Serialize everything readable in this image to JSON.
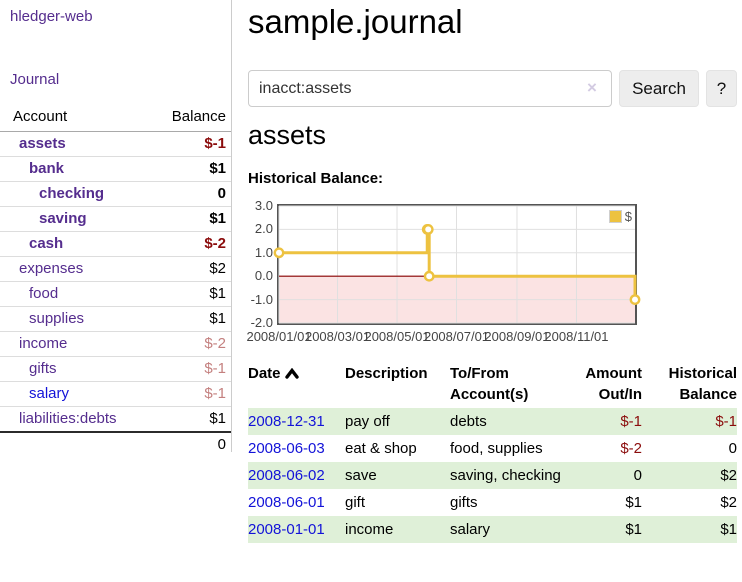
{
  "theme": {
    "purple": "#552d8e",
    "blue": "#1313d8",
    "neg_strong": "#8b0c0c",
    "neg_soft": "#c4807f",
    "stripe": "#dff0d8",
    "button_bg": "#ededed",
    "input_border": "#cccccc",
    "divider": "#cccccc",
    "plot_border": "#545454"
  },
  "sidebar": {
    "brand": "hledger-web",
    "journal_link": "Journal",
    "accounts_table": {
      "headers": {
        "account": "Account",
        "balance": "Balance"
      },
      "rows": [
        {
          "name": "assets",
          "balance": "$-1",
          "depth": 0,
          "strong": true,
          "negative": true
        },
        {
          "name": "bank",
          "balance": "$1",
          "depth": 1,
          "strong": true,
          "negative": false
        },
        {
          "name": "checking",
          "balance": "0",
          "depth": 2,
          "strong": true,
          "negative": false
        },
        {
          "name": "saving",
          "balance": "$1",
          "depth": 2,
          "strong": true,
          "negative": false
        },
        {
          "name": "cash",
          "balance": "$-2",
          "depth": 1,
          "strong": true,
          "negative": true
        },
        {
          "name": "expenses",
          "balance": "$2",
          "depth": 0,
          "strong": false,
          "negative": false
        },
        {
          "name": "food",
          "balance": "$1",
          "depth": 1,
          "strong": false,
          "negative": false
        },
        {
          "name": "supplies",
          "balance": "$1",
          "depth": 1,
          "strong": false,
          "negative": false
        },
        {
          "name": "income",
          "balance": "$-2",
          "depth": 0,
          "strong": false,
          "negative": true
        },
        {
          "name": "gifts",
          "balance": "$-1",
          "depth": 1,
          "strong": false,
          "negative": true
        },
        {
          "name": "salary",
          "balance": "$-1",
          "depth": 1,
          "strong": false,
          "negative": true,
          "unvisited": true
        },
        {
          "name": "liabilities:debts",
          "balance": "$1",
          "depth": 0,
          "strong": false,
          "negative": false
        }
      ],
      "total": "0"
    }
  },
  "header": {
    "title": "sample.journal"
  },
  "search": {
    "value": "inacct:assets",
    "clear_icon": "×",
    "search_button": "Search",
    "help_button": "?"
  },
  "account_page": {
    "heading": "assets",
    "section_label": "Historical Balance:"
  },
  "chart_data": {
    "type": "line",
    "step": true,
    "title": "Historical Balance",
    "x_range": [
      "2008-01-01",
      "2008-12-31"
    ],
    "ylim": [
      -2,
      3
    ],
    "y_ticks": [
      {
        "value": 3,
        "label": "3.0"
      },
      {
        "value": 2,
        "label": "2.0"
      },
      {
        "value": 1,
        "label": "1.0"
      },
      {
        "value": 0,
        "label": "0.0"
      },
      {
        "value": -1,
        "label": "-1.0"
      },
      {
        "value": -2,
        "label": "-2.0"
      }
    ],
    "x_ticks": [
      {
        "date": "2008-01-01",
        "label": "2008/01/01"
      },
      {
        "date": "2008-03-01",
        "label": "2008/03/01"
      },
      {
        "date": "2008-05-01",
        "label": "2008/05/01"
      },
      {
        "date": "2008-07-01",
        "label": "2008/07/01"
      },
      {
        "date": "2008-09-01",
        "label": "2008/09/01"
      },
      {
        "date": "2008-11-01",
        "label": "2008/11/01"
      }
    ],
    "grid": true,
    "negative_region_fill": "#fbe3e3",
    "zero_line_color": "#8b0000",
    "grid_color": "#e0e0e0",
    "legend": {
      "position": "top-right",
      "items": [
        {
          "label": "$",
          "color": "#edc240"
        }
      ]
    },
    "series": [
      {
        "name": "$",
        "color": "#edc240",
        "points": [
          [
            "2008-01-01",
            1
          ],
          [
            "2008-06-01",
            2
          ],
          [
            "2008-06-02",
            2
          ],
          [
            "2008-06-03",
            0
          ],
          [
            "2008-12-31",
            -1
          ]
        ]
      }
    ]
  },
  "register": {
    "columns": [
      {
        "label": "Date",
        "align": "left",
        "sorted": true,
        "sort_icon": "chevron-up"
      },
      {
        "label": "Description",
        "align": "left"
      },
      {
        "label": "To/From Account(s)",
        "align": "left"
      },
      {
        "label": "Amount Out/In",
        "align": "right"
      },
      {
        "label": "Historical Balance",
        "align": "right"
      }
    ],
    "rows": [
      {
        "date": "2008-12-31",
        "description": "pay off",
        "accounts": "debts",
        "amount": "$-1",
        "balance": "$-1",
        "amount_negative": true,
        "balance_negative": true
      },
      {
        "date": "2008-06-03",
        "description": "eat & shop",
        "accounts": "food, supplies",
        "amount": "$-2",
        "balance": "0",
        "amount_negative": true,
        "balance_negative": false
      },
      {
        "date": "2008-06-02",
        "description": "save",
        "accounts": "saving, checking",
        "amount": "0",
        "balance": "$2",
        "amount_negative": false,
        "balance_negative": false
      },
      {
        "date": "2008-06-01",
        "description": "gift",
        "accounts": "gifts",
        "amount": "$1",
        "balance": "$2",
        "amount_negative": false,
        "balance_negative": false
      },
      {
        "date": "2008-01-01",
        "description": "income",
        "accounts": "salary",
        "amount": "$1",
        "balance": "$1",
        "amount_negative": false,
        "balance_negative": false
      }
    ]
  }
}
